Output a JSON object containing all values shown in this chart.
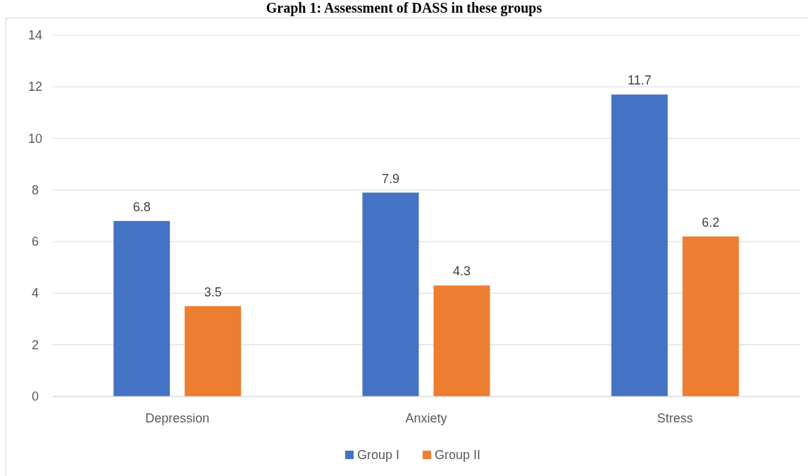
{
  "chart_data": {
    "type": "bar",
    "title": "Graph 1: Assessment of DASS in these groups",
    "categories": [
      "Depression",
      "Anxiety",
      "Stress"
    ],
    "series": [
      {
        "name": "Group I",
        "color": "#4472c4",
        "values": [
          6.8,
          7.9,
          11.7
        ]
      },
      {
        "name": "Group II",
        "color": "#ed7d31",
        "values": [
          3.5,
          4.3,
          6.2
        ]
      }
    ],
    "ylim": [
      0,
      14
    ],
    "yticks": [
      0,
      2,
      4,
      6,
      8,
      10,
      12,
      14
    ],
    "grid": "y",
    "legend": "bottom",
    "data_labels": true
  }
}
